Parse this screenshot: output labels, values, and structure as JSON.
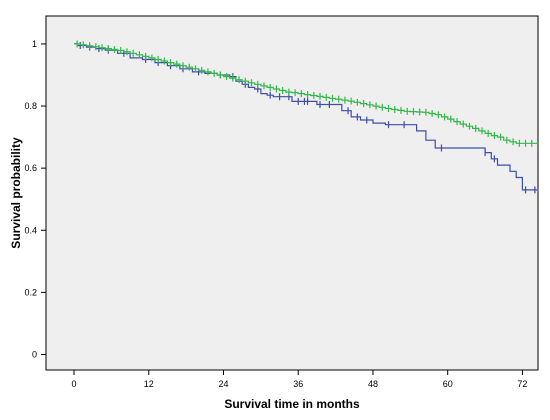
{
  "chart_data": {
    "type": "line",
    "subtype": "kaplan-meier-step",
    "title": "",
    "xlabel": "Survival time in months",
    "ylabel": "Survival probability",
    "xlim": [
      -4.5,
      74.5
    ],
    "ylim": [
      -0.05,
      1.09
    ],
    "xticks": [
      0,
      12,
      24,
      36,
      48,
      60,
      72
    ],
    "yticks": [
      0,
      0.2,
      0.4,
      0.6,
      0.8,
      1
    ],
    "ytick_labels": [
      "0",
      "0.2",
      "0.4",
      "0.6",
      "0.8",
      "1"
    ],
    "grid": false,
    "legend": "none",
    "background": "#efefef",
    "series": [
      {
        "color": "#3d4fa5",
        "x": [
          0,
          0.5,
          2,
          3.5,
          5,
          7,
          9,
          11,
          13,
          15,
          17,
          19,
          21,
          23,
          25,
          26,
          27,
          28,
          29,
          30,
          31,
          32,
          35,
          39,
          43,
          44.5,
          46,
          48,
          50,
          55,
          56.5,
          58,
          64,
          66,
          67,
          68,
          70,
          71,
          72,
          74.5
        ],
        "y": [
          1.0,
          0.995,
          0.99,
          0.985,
          0.98,
          0.97,
          0.955,
          0.95,
          0.94,
          0.93,
          0.92,
          0.91,
          0.905,
          0.9,
          0.895,
          0.88,
          0.87,
          0.86,
          0.855,
          0.84,
          0.835,
          0.83,
          0.815,
          0.805,
          0.785,
          0.765,
          0.755,
          0.745,
          0.74,
          0.72,
          0.69,
          0.665,
          0.665,
          0.65,
          0.63,
          0.61,
          0.59,
          0.57,
          0.53,
          0.525
        ],
        "censor_x": [
          1,
          2.5,
          4,
          5.5,
          8,
          11.5,
          13.5,
          15.5,
          17.5,
          20,
          23.5,
          25.5,
          27.5,
          29.5,
          31.5,
          33,
          34.5,
          36,
          37,
          37.5,
          39.5,
          41,
          44,
          45.5,
          47,
          50.5,
          53,
          59,
          66,
          67.5,
          72.5,
          74
        ]
      },
      {
        "color": "#33b84a",
        "x": [
          0,
          1,
          2,
          3,
          4,
          5,
          6,
          7,
          8,
          9,
          10,
          11,
          12,
          13,
          14,
          15,
          16,
          17,
          18,
          19,
          20,
          21,
          22,
          23,
          24,
          25,
          26,
          27,
          28,
          29,
          30,
          31,
          32,
          33,
          34,
          35,
          36,
          37,
          38,
          39,
          40,
          41,
          42,
          43,
          44,
          45,
          46,
          47,
          48,
          49,
          50,
          51,
          52,
          53,
          54,
          55,
          56,
          57,
          58,
          59,
          60,
          61,
          62,
          63,
          64,
          65,
          66,
          67,
          68,
          69,
          70,
          71,
          72,
          73,
          74.5
        ],
        "y": [
          1.0,
          0.997,
          0.994,
          0.991,
          0.988,
          0.985,
          0.982,
          0.979,
          0.975,
          0.97,
          0.965,
          0.96,
          0.955,
          0.95,
          0.945,
          0.94,
          0.935,
          0.93,
          0.925,
          0.92,
          0.915,
          0.91,
          0.905,
          0.9,
          0.895,
          0.89,
          0.885,
          0.88,
          0.875,
          0.87,
          0.865,
          0.86,
          0.855,
          0.85,
          0.845,
          0.843,
          0.84,
          0.837,
          0.834,
          0.831,
          0.828,
          0.825,
          0.822,
          0.819,
          0.816,
          0.812,
          0.808,
          0.804,
          0.8,
          0.796,
          0.792,
          0.789,
          0.786,
          0.783,
          0.782,
          0.781,
          0.78,
          0.776,
          0.772,
          0.765,
          0.758,
          0.75,
          0.742,
          0.735,
          0.728,
          0.72,
          0.712,
          0.705,
          0.7,
          0.69,
          0.685,
          0.68,
          0.68,
          0.68,
          0.68
        ],
        "censor_x": [
          0.5,
          1.5,
          2.5,
          3.5,
          4.5,
          5.5,
          6.5,
          7.5,
          8.5,
          9.5,
          10.5,
          11.5,
          12.5,
          13.5,
          14.5,
          15.5,
          16.5,
          17.5,
          18.5,
          19.5,
          20.5,
          21.5,
          22.5,
          23.5,
          24.5,
          25.5,
          26.5,
          27.5,
          28.5,
          29.5,
          30.5,
          31.5,
          32.5,
          33.5,
          34.5,
          35.5,
          36.5,
          37.5,
          38.5,
          39.5,
          40.5,
          41.5,
          42.5,
          43.5,
          44.5,
          45.5,
          46.5,
          47.5,
          48.5,
          49.5,
          50.5,
          51.5,
          52.5,
          53.5,
          54.5,
          55.5,
          56.5,
          57.5,
          58.5,
          59.5,
          60.5,
          61.5,
          62.5,
          63.5,
          64.5,
          65.5,
          66.5,
          67.5,
          68.5,
          69.5,
          70.5,
          71.5,
          72.5,
          73.5
        ]
      }
    ]
  }
}
